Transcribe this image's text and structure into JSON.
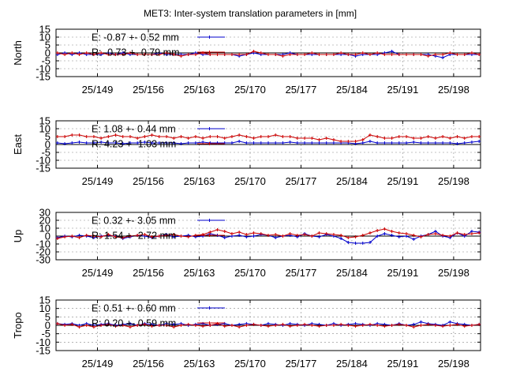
{
  "title": "MET3: Inter-system translation parameters in [mm]",
  "colors": {
    "E": "#0000cc",
    "R": "#cc0000",
    "zero": "#000000",
    "grid": "#888888"
  },
  "chart_data": [
    {
      "type": "line",
      "ylabel": "North",
      "ylim": [
        -15,
        15
      ],
      "yticks": [
        -15,
        -10,
        -5,
        0,
        5,
        10,
        15
      ],
      "xlim": [
        143.3,
        201.7
      ],
      "xticks": [
        149,
        156,
        163,
        170,
        177,
        184,
        191,
        198
      ],
      "xtick_labels": [
        "25/149",
        "25/156",
        "25/163",
        "25/170",
        "25/177",
        "25/184",
        "25/191",
        "25/198"
      ],
      "legend": [
        {
          "label": "E:  -0.87 +- 0.52 mm",
          "color": "#0000cc"
        },
        {
          "label": "R:  -0.73 +- 0.79 mm",
          "color": "#cc0000"
        }
      ],
      "x": [
        143.5,
        144.5,
        145.5,
        146.5,
        147.5,
        148.5,
        149.5,
        150.5,
        151.5,
        152.5,
        153.5,
        154.5,
        155.5,
        156.5,
        157.5,
        158.5,
        159.5,
        160.5,
        161.5,
        162.5,
        163.5,
        164.5,
        165.5,
        166.5,
        167.5,
        168.5,
        169.5,
        170.5,
        171.5,
        172.5,
        173.5,
        174.5,
        175.5,
        176.5,
        177.5,
        178.5,
        179.5,
        180.5,
        181.5,
        182.5,
        183.5,
        184.5,
        185.5,
        186.5,
        187.5,
        188.5,
        189.5,
        190.5,
        191.5,
        192.5,
        193.5,
        194.5,
        195.5,
        196.5,
        197.5,
        198.5,
        199.5,
        200.5,
        201.5
      ],
      "series": [
        {
          "name": "E",
          "values": [
            -1,
            0,
            -1,
            0,
            -1,
            -1,
            -1,
            0,
            -1,
            0,
            -1,
            -1,
            -1,
            -1,
            0,
            -1,
            -1,
            -1,
            -1,
            0,
            -1,
            -1,
            -1,
            -1,
            -1,
            -2,
            -1,
            0,
            -1,
            -1,
            -1,
            -1,
            0,
            -1,
            -1,
            -1,
            -1,
            -1,
            -1,
            -1,
            -1,
            -2,
            -1,
            -1,
            -1,
            0,
            1,
            -1,
            -1,
            -1,
            -1,
            -1,
            -2,
            -3,
            -1,
            -1,
            -1,
            -1,
            -1
          ]
        },
        {
          "name": "R",
          "values": [
            0,
            -1,
            0,
            -1,
            0,
            -1,
            0,
            -1,
            -1,
            -1,
            0,
            -1,
            -1,
            -1,
            -1,
            0,
            -1,
            -2,
            -1,
            -1,
            0,
            -1,
            -1,
            -1,
            -1,
            -1,
            -1,
            1,
            0,
            -1,
            -1,
            -2,
            -1,
            -1,
            -1,
            0,
            -1,
            -1,
            -1,
            0,
            -1,
            -1,
            0,
            -1,
            0,
            -1,
            -1,
            -1,
            -1,
            -1,
            -1,
            -2,
            -1,
            -1,
            0,
            -1,
            -1,
            0,
            -1
          ]
        }
      ]
    },
    {
      "type": "line",
      "ylabel": "East",
      "ylim": [
        -15,
        15
      ],
      "yticks": [
        -15,
        -10,
        -5,
        0,
        5,
        10,
        15
      ],
      "xlim": [
        143.3,
        201.7
      ],
      "xticks": [
        149,
        156,
        163,
        170,
        177,
        184,
        191,
        198
      ],
      "xtick_labels": [
        "25/149",
        "25/156",
        "25/163",
        "25/170",
        "25/177",
        "25/184",
        "25/191",
        "25/198"
      ],
      "legend": [
        {
          "label": "E:   1.08 +- 0.44 mm",
          "color": "#0000cc"
        },
        {
          "label": "R:   4.23 +- 1.03 mm",
          "color": "#cc0000"
        }
      ],
      "x": [
        143.5,
        144.5,
        145.5,
        146.5,
        147.5,
        148.5,
        149.5,
        150.5,
        151.5,
        152.5,
        153.5,
        154.5,
        155.5,
        156.5,
        157.5,
        158.5,
        159.5,
        160.5,
        161.5,
        162.5,
        163.5,
        164.5,
        165.5,
        166.5,
        167.5,
        168.5,
        169.5,
        170.5,
        171.5,
        172.5,
        173.5,
        174.5,
        175.5,
        176.5,
        177.5,
        178.5,
        179.5,
        180.5,
        181.5,
        182.5,
        183.5,
        184.5,
        185.5,
        186.5,
        187.5,
        188.5,
        189.5,
        190.5,
        191.5,
        192.5,
        193.5,
        194.5,
        195.5,
        196.5,
        197.5,
        198.5,
        199.5,
        200.5,
        201.5
      ],
      "series": [
        {
          "name": "E",
          "values": [
            1,
            0.5,
            1,
            1.5,
            1,
            1,
            1.5,
            1,
            1,
            0.5,
            1,
            1,
            1.5,
            1,
            1,
            1,
            1,
            0.5,
            1,
            1,
            1.5,
            1,
            1,
            1,
            1,
            2,
            1,
            1,
            1,
            1,
            1,
            1,
            1.5,
            1,
            1,
            1,
            1,
            1,
            1,
            1,
            1,
            0.5,
            1,
            2,
            1,
            1,
            1,
            1,
            1,
            1.5,
            1,
            1,
            1,
            1,
            1,
            0.5,
            1,
            1.5,
            2
          ]
        },
        {
          "name": "R",
          "values": [
            5,
            5,
            6,
            6,
            5,
            5,
            4,
            5,
            6,
            5,
            5,
            4,
            5,
            6,
            5,
            5,
            4,
            5,
            4,
            5,
            4,
            5,
            5,
            4,
            5,
            6,
            5,
            4,
            5,
            5,
            6,
            5,
            5,
            4,
            4,
            4,
            3,
            4,
            3,
            2,
            2,
            2,
            3,
            6,
            5,
            4,
            4,
            5,
            5,
            4,
            4,
            5,
            4,
            5,
            4,
            5,
            4,
            5,
            5
          ]
        }
      ]
    },
    {
      "type": "line",
      "ylabel": "Up",
      "ylim": [
        -30,
        30
      ],
      "yticks": [
        -30,
        -20,
        -10,
        0,
        10,
        20,
        30
      ],
      "xlim": [
        143.3,
        201.7
      ],
      "xticks": [
        149,
        156,
        163,
        170,
        177,
        184,
        191,
        198
      ],
      "xtick_labels": [
        "25/149",
        "25/156",
        "25/163",
        "25/170",
        "25/177",
        "25/184",
        "25/191",
        "25/198"
      ],
      "legend": [
        {
          "label": "E:   0.32 +- 3.05 mm",
          "color": "#0000cc"
        },
        {
          "label": "R:   1.54 +- 2.72 mm",
          "color": "#cc0000"
        }
      ],
      "x": [
        143.5,
        144.5,
        145.5,
        146.5,
        147.5,
        148.5,
        149.5,
        150.5,
        151.5,
        152.5,
        153.5,
        154.5,
        155.5,
        156.5,
        157.5,
        158.5,
        159.5,
        160.5,
        161.5,
        162.5,
        163.5,
        164.5,
        165.5,
        166.5,
        167.5,
        168.5,
        169.5,
        170.5,
        171.5,
        172.5,
        173.5,
        174.5,
        175.5,
        176.5,
        177.5,
        178.5,
        179.5,
        180.5,
        181.5,
        182.5,
        183.5,
        184.5,
        185.5,
        186.5,
        187.5,
        188.5,
        189.5,
        190.5,
        191.5,
        192.5,
        193.5,
        194.5,
        195.5,
        196.5,
        197.5,
        198.5,
        199.5,
        200.5,
        201.5
      ],
      "series": [
        {
          "name": "E",
          "values": [
            -2,
            0,
            -1,
            1,
            0,
            -2,
            0,
            1,
            0,
            -3,
            -1,
            1,
            0,
            -2,
            0,
            2,
            -1,
            0,
            1,
            -1,
            0,
            3,
            1,
            -2,
            0,
            1,
            -1,
            0,
            2,
            1,
            -2,
            0,
            1,
            -1,
            3,
            0,
            -1,
            2,
            0,
            -3,
            -8,
            -9,
            -9,
            -8,
            0,
            3,
            1,
            -1,
            0,
            -4,
            0,
            2,
            6,
            0,
            -2,
            4,
            0,
            6,
            5
          ]
        },
        {
          "name": "R",
          "values": [
            -3,
            -1,
            0,
            -2,
            1,
            0,
            -1,
            2,
            -1,
            -2,
            0,
            1,
            2,
            -1,
            0,
            1,
            2,
            0,
            -1,
            1,
            2,
            5,
            8,
            6,
            3,
            5,
            2,
            4,
            3,
            1,
            2,
            0,
            3,
            1,
            2,
            0,
            4,
            3,
            2,
            1,
            -2,
            -1,
            1,
            4,
            7,
            9,
            6,
            4,
            3,
            1,
            -1,
            2,
            3,
            1,
            0,
            4,
            2,
            3,
            4
          ]
        }
      ]
    },
    {
      "type": "line",
      "ylabel": "Tropo",
      "ylim": [
        -15,
        15
      ],
      "yticks": [
        -15,
        -10,
        -5,
        0,
        5,
        10,
        15
      ],
      "xlim": [
        143.3,
        201.7
      ],
      "xticks": [
        149,
        156,
        163,
        170,
        177,
        184,
        191,
        198
      ],
      "xtick_labels": [
        "25/149",
        "25/156",
        "25/163",
        "25/170",
        "25/177",
        "25/184",
        "25/191",
        "25/198"
      ],
      "legend": [
        {
          "label": "E:   0.51 +- 0.60 mm",
          "color": "#0000cc"
        },
        {
          "label": "R:   0.20 +- 0.59 mm",
          "color": "#cc0000"
        }
      ],
      "x": [
        143.5,
        144.5,
        145.5,
        146.5,
        147.5,
        148.5,
        149.5,
        150.5,
        151.5,
        152.5,
        153.5,
        154.5,
        155.5,
        156.5,
        157.5,
        158.5,
        159.5,
        160.5,
        161.5,
        162.5,
        163.5,
        164.5,
        165.5,
        166.5,
        167.5,
        168.5,
        169.5,
        170.5,
        171.5,
        172.5,
        173.5,
        174.5,
        175.5,
        176.5,
        177.5,
        178.5,
        179.5,
        180.5,
        181.5,
        182.5,
        183.5,
        184.5,
        185.5,
        186.5,
        187.5,
        188.5,
        189.5,
        190.5,
        191.5,
        192.5,
        193.5,
        194.5,
        195.5,
        196.5,
        197.5,
        198.5,
        199.5,
        200.5,
        201.5
      ],
      "series": [
        {
          "name": "E",
          "values": [
            1,
            0.5,
            1,
            0,
            1,
            0,
            0.5,
            1,
            0,
            0.5,
            1,
            0,
            1,
            0.5,
            0,
            1,
            0.5,
            1,
            0,
            0.5,
            1,
            0,
            0.5,
            1,
            0,
            0.5,
            1,
            0.5,
            0,
            1,
            0.5,
            0,
            1,
            0.5,
            0,
            1,
            0.5,
            0,
            1,
            0,
            0.5,
            1,
            0.5,
            0,
            1,
            0.5,
            0,
            1,
            0,
            0.5,
            2,
            1,
            0.5,
            0,
            2,
            1,
            0.5,
            0,
            0.5
          ]
        },
        {
          "name": "R",
          "values": [
            1,
            0,
            0.5,
            -1,
            0,
            -1,
            0,
            0.5,
            -0.5,
            0,
            -1,
            0,
            0.5,
            -0.5,
            0,
            0,
            -1,
            0,
            0.5,
            0,
            -0.5,
            0,
            1,
            -0.5,
            0,
            -1,
            0,
            0.5,
            0,
            -0.5,
            0,
            0.5,
            -0.5,
            0,
            0.5,
            0,
            -0.5,
            0,
            0,
            0.5,
            0,
            -0.5,
            0,
            0.5,
            0,
            -0.5,
            0,
            0.5,
            0,
            -1,
            0,
            0.5,
            0,
            -0.5,
            0,
            0.5,
            -0.5,
            0,
            0.5
          ]
        }
      ]
    }
  ]
}
